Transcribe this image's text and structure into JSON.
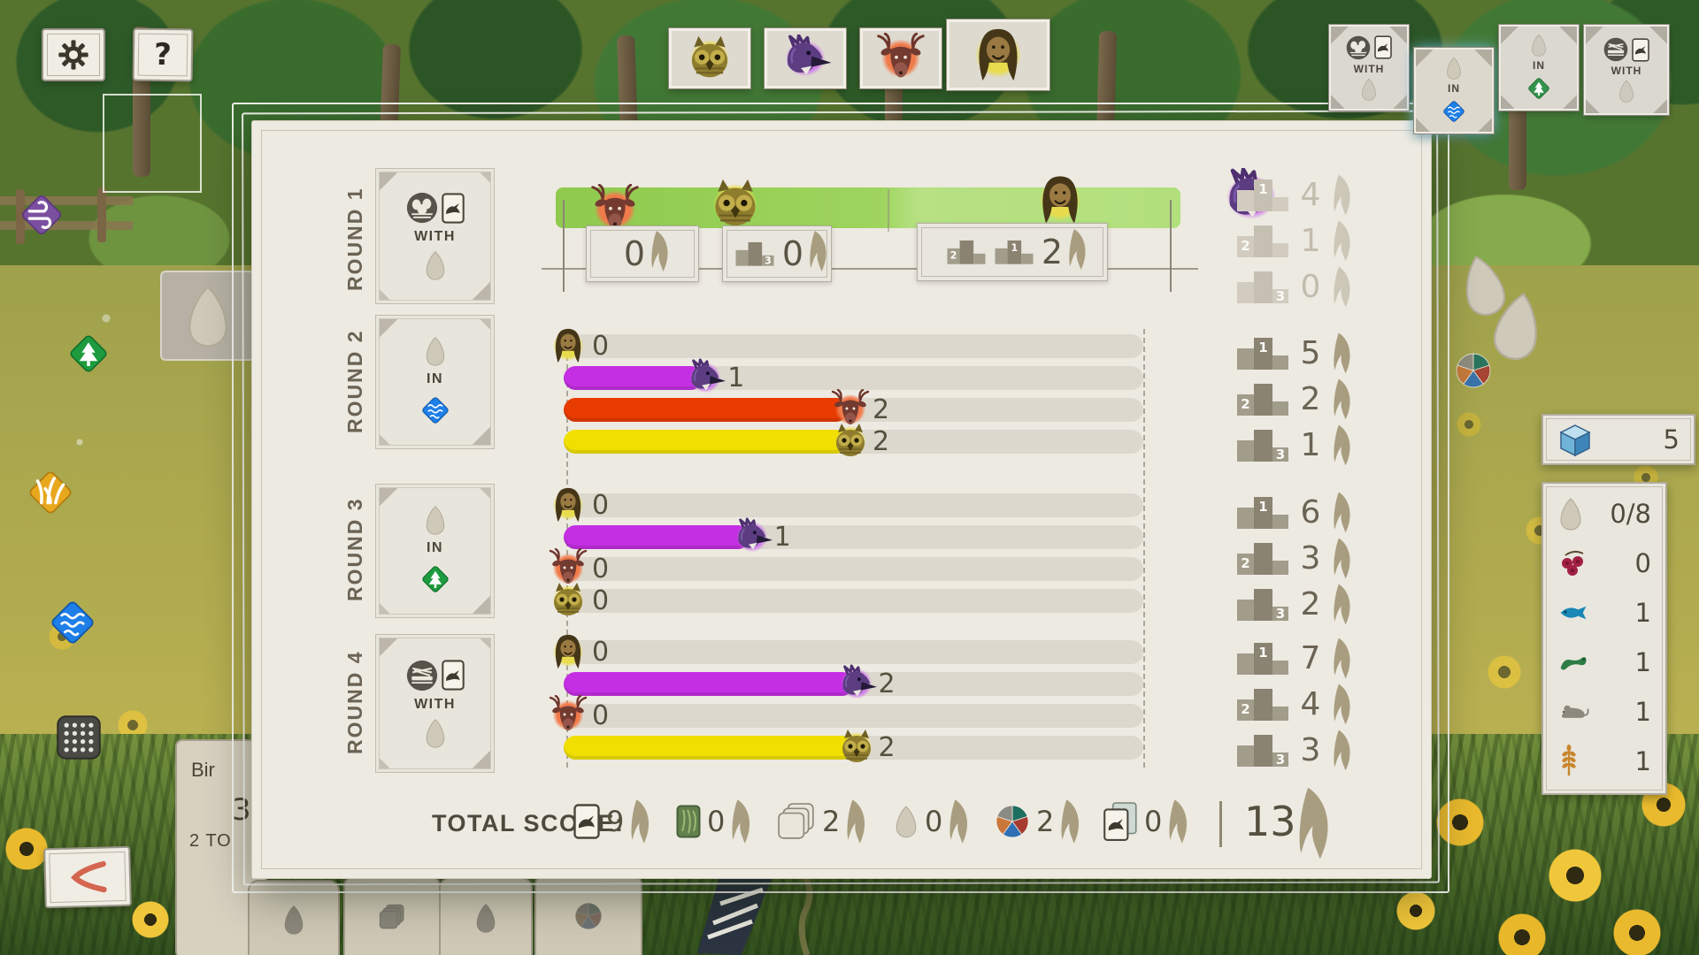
{
  "players": [
    {
      "id": "owl",
      "name": "Owl player",
      "splash": "#ecd944",
      "bar": "#f0df00"
    },
    {
      "id": "jay",
      "name": "Jay player",
      "splash": "#cf7ee8",
      "bar": "#c42fe3"
    },
    {
      "id": "deer",
      "name": "Deer player",
      "splash": "#f07a4a",
      "bar": "#e83b00"
    },
    {
      "id": "woman",
      "name": "Human player",
      "splash": "#e8dc4e",
      "bar": "#e8d84a"
    }
  ],
  "top_players": [
    "owl",
    "jay",
    "deer",
    "woman"
  ],
  "toolbar": {
    "help_label": "?"
  },
  "top_goals": [
    {
      "word": "WITH",
      "icon": "bowl-nest"
    },
    {
      "word": "IN",
      "icon": "wetland",
      "selected": true
    },
    {
      "word": "IN",
      "icon": "forest"
    },
    {
      "word": "WITH",
      "icon": "platform-nest"
    }
  ],
  "rounds": [
    {
      "label": "Round 1",
      "goal_word": "WITH",
      "goal_icon": "bowl-nest",
      "groups": [
        {
          "avatars": [
            "deer",
            "owl"
          ],
          "score": "0"
        },
        {
          "podiums": [
            "3"
          ],
          "score": "0"
        },
        {
          "podiums": [
            "2",
            "1"
          ],
          "avatars": [
            "woman",
            "jay"
          ],
          "score": "2"
        }
      ],
      "awards": [
        {
          "place": "1",
          "points": "4"
        },
        {
          "place": "2",
          "points": "1"
        },
        {
          "place": "3",
          "points": "0"
        }
      ],
      "awards_faded": true
    },
    {
      "label": "Round 2",
      "goal_word": "IN",
      "goal_icon": "wetland",
      "bars": [
        {
          "player": "woman",
          "value": "0",
          "pct": 0
        },
        {
          "player": "jay",
          "value": "1",
          "pct": 24
        },
        {
          "player": "deer",
          "value": "2",
          "pct": 49
        },
        {
          "player": "owl",
          "value": "2",
          "pct": 49
        }
      ],
      "awards": [
        {
          "place": "1",
          "points": "5"
        },
        {
          "place": "2",
          "points": "2"
        },
        {
          "place": "3",
          "points": "1"
        }
      ]
    },
    {
      "label": "Round 3",
      "goal_word": "IN",
      "goal_icon": "forest",
      "bars": [
        {
          "player": "woman",
          "value": "0",
          "pct": 0
        },
        {
          "player": "jay",
          "value": "1",
          "pct": 32
        },
        {
          "player": "deer",
          "value": "0",
          "pct": 0
        },
        {
          "player": "owl",
          "value": "0",
          "pct": 0
        }
      ],
      "awards": [
        {
          "place": "1",
          "points": "6"
        },
        {
          "place": "2",
          "points": "3"
        },
        {
          "place": "3",
          "points": "2"
        }
      ]
    },
    {
      "label": "Round 4",
      "goal_word": "WITH",
      "goal_icon": "platform-nest",
      "bars": [
        {
          "player": "woman",
          "value": "0",
          "pct": 0
        },
        {
          "player": "jay",
          "value": "2",
          "pct": 50
        },
        {
          "player": "deer",
          "value": "0",
          "pct": 0
        },
        {
          "player": "owl",
          "value": "2",
          "pct": 50
        }
      ],
      "awards": [
        {
          "place": "1",
          "points": "7"
        },
        {
          "place": "2",
          "points": "4"
        },
        {
          "place": "3",
          "points": "3"
        }
      ]
    }
  ],
  "total": {
    "label": "Total score:",
    "items": [
      {
        "icon": "bird-card",
        "value": "9"
      },
      {
        "icon": "bonus-card",
        "value": "0"
      },
      {
        "icon": "goal-tiles",
        "value": "2"
      },
      {
        "icon": "egg",
        "value": "0"
      },
      {
        "icon": "food-pie",
        "value": "2"
      },
      {
        "icon": "tucked-card",
        "value": "0"
      }
    ],
    "grand": "13"
  },
  "right_panel": {
    "cube_count": "5",
    "rows": [
      {
        "icon": "egg",
        "value": "0/8"
      },
      {
        "icon": "berry",
        "value": "0"
      },
      {
        "icon": "fish",
        "value": "1"
      },
      {
        "icon": "caterpillar",
        "value": "1"
      },
      {
        "icon": "mouse",
        "value": "1"
      },
      {
        "icon": "wheat",
        "value": "1"
      }
    ]
  },
  "bottom_left": {
    "text_fragment": "Bir",
    "number_fragment": "3",
    "text_fragment2": "2 TO"
  },
  "colors": {
    "panel_paper": "#edeae2",
    "green_band": "#9ed45e",
    "feather": "#a89d7e"
  }
}
